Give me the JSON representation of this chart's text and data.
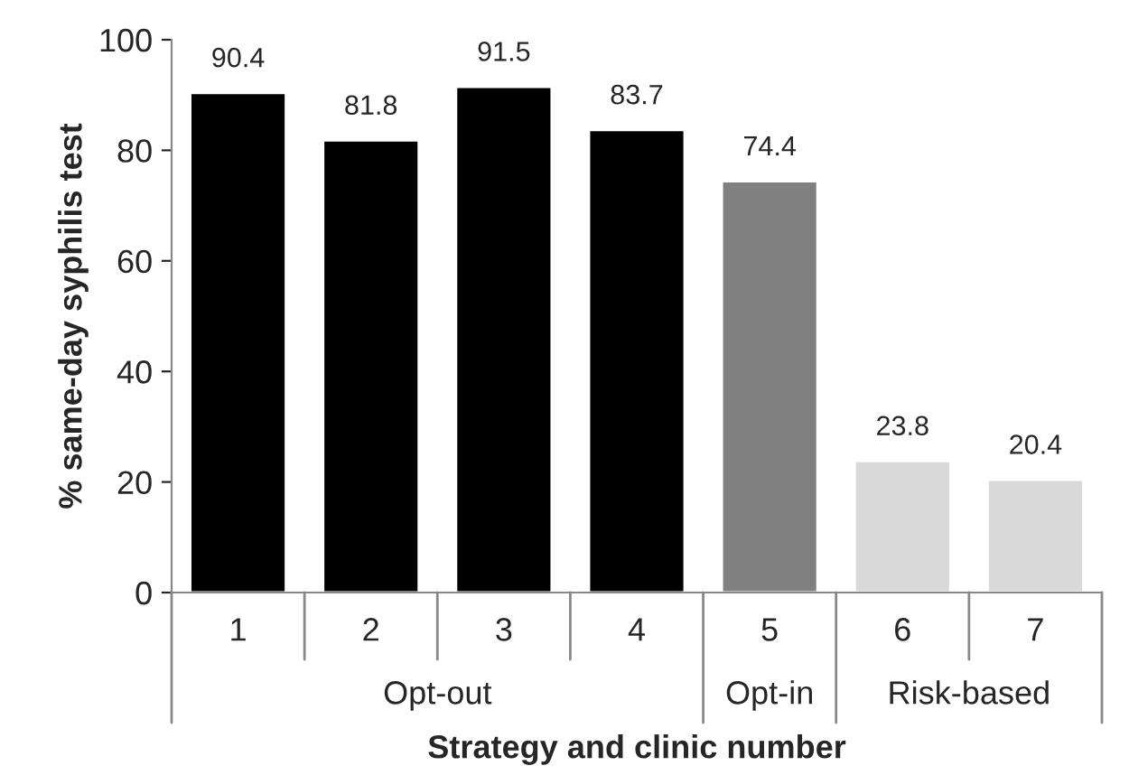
{
  "chart_data": {
    "type": "bar",
    "ylabel": "% same-day syphilis test",
    "xlabel": "Strategy and clinic number",
    "categories": [
      "1",
      "2",
      "3",
      "4",
      "5",
      "6",
      "7"
    ],
    "values": [
      90.4,
      81.8,
      91.5,
      83.7,
      74.4,
      23.8,
      20.4
    ],
    "colors": [
      "#000000",
      "#000000",
      "#000000",
      "#000000",
      "#808080",
      "#d9d9d9",
      "#d9d9d9"
    ],
    "ylim": [
      0,
      100
    ],
    "yticks": [
      0,
      20,
      40,
      60,
      80,
      100
    ],
    "data_labels": true,
    "grid": false,
    "legend": false,
    "annotations": [
      "Opt-out",
      "Opt-in",
      "Risk-based"
    ]
  }
}
